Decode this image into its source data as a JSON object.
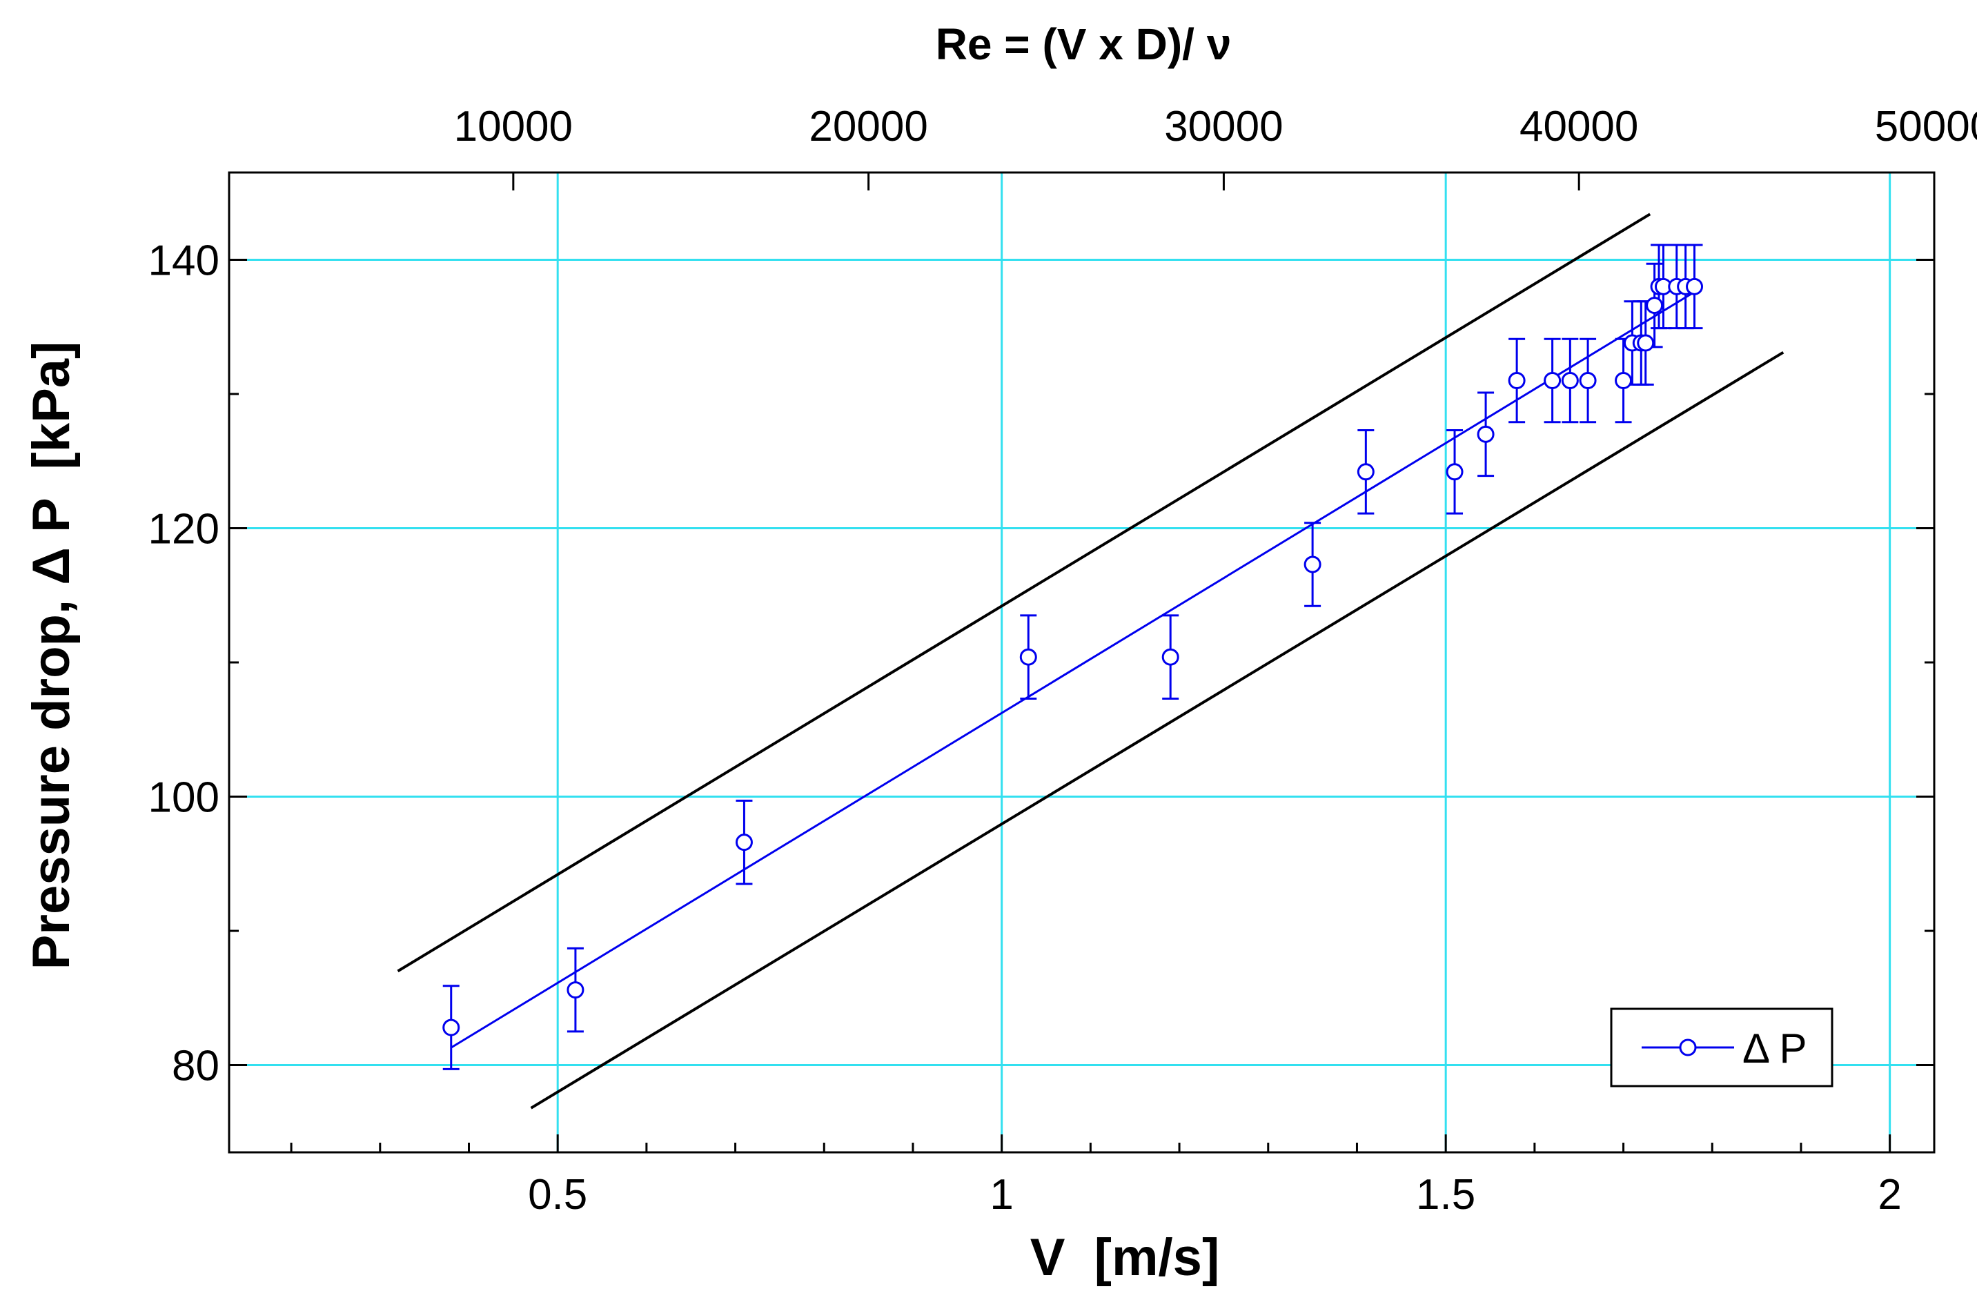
{
  "chart_data": {
    "type": "scatter",
    "xlabel": "V  [m/s]",
    "ylabel": "Pressure drop, Δ P  [kPa]",
    "top_axis_title": "Re = (V x D)/ ν",
    "xlim": [
      0.13,
      2.05
    ],
    "ylim": [
      73.5,
      146.5
    ],
    "x_ticks": [
      "0.5",
      "1",
      "1.5",
      "2"
    ],
    "x_tick_values": [
      0.5,
      1,
      1.5,
      2
    ],
    "x_minor_ticks": [
      0.2,
      0.3,
      0.4,
      0.6,
      0.7,
      0.8,
      0.9,
      1.1,
      1.2,
      1.3,
      1.4,
      1.6,
      1.7,
      1.8,
      1.9
    ],
    "top_ticks": [
      "10000",
      "20000",
      "30000",
      "40000",
      "50000"
    ],
    "top_tick_values": [
      10000,
      20000,
      30000,
      40000,
      50000
    ],
    "top_tick_v_positions": [
      0.45,
      0.85,
      1.25,
      1.65,
      2.05
    ],
    "y_ticks": [
      "80",
      "100",
      "120",
      "140"
    ],
    "y_tick_values": [
      80,
      100,
      120,
      140
    ],
    "y_minor_ticks": [
      90,
      110,
      130
    ],
    "grid": true,
    "grid_color": "#33e0f0",
    "series_color": "#0000ee",
    "legend": {
      "label": "Δ P",
      "position": "bottom-right"
    },
    "series": [
      {
        "name": "Δ P",
        "x": [
          0.38,
          0.52,
          0.71,
          1.03,
          1.19,
          1.35,
          1.41,
          1.51,
          1.545,
          1.58,
          1.62,
          1.64,
          1.66,
          1.7,
          1.71,
          1.72,
          1.725,
          1.735,
          1.74,
          1.745,
          1.76,
          1.77,
          1.78
        ],
        "y": [
          82.8,
          85.6,
          96.6,
          110.4,
          110.4,
          117.3,
          124.2,
          124.2,
          127,
          131,
          131,
          131,
          131,
          131,
          133.8,
          133.8,
          133.8,
          136.6,
          138,
          138,
          138,
          138,
          138
        ],
        "error": 3.1
      }
    ],
    "fit_line": {
      "x": [
        0.38,
        1.78
      ],
      "y": [
        81.3,
        137.6
      ]
    },
    "bound_lines": [
      {
        "name": "upper bound",
        "x": [
          0.32,
          1.73
        ],
        "y": [
          87,
          143.4
        ]
      },
      {
        "name": "lower bound",
        "x": [
          0.47,
          1.88
        ],
        "y": [
          76.8,
          133.1
        ]
      }
    ]
  }
}
